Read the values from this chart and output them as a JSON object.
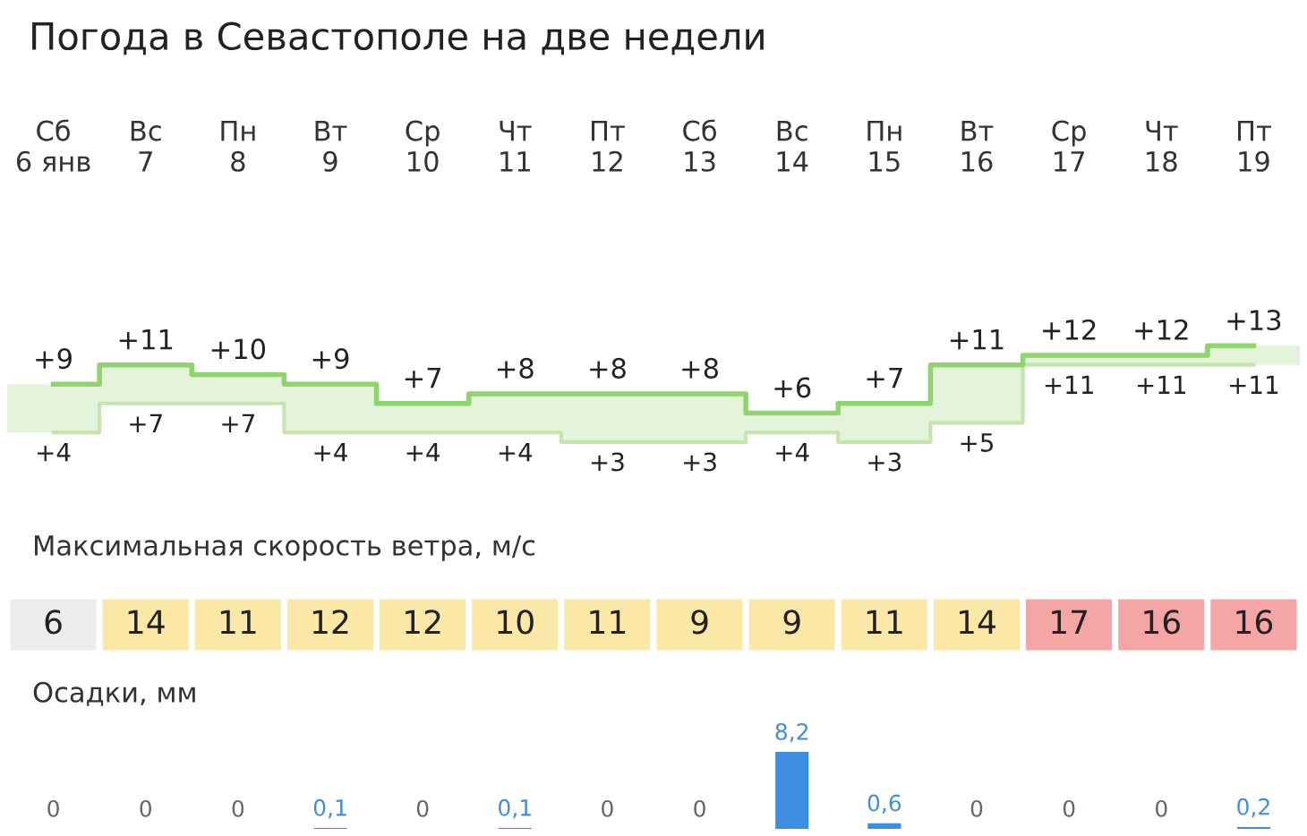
{
  "chart_data": [
    {
      "type": "step",
      "title": "Погода в Севастополе на две недели",
      "categories": [
        "Сб\n6 янв",
        "Вс\n7",
        "Пн\n8",
        "Вт\n9",
        "Ср\n10",
        "Чт\n11",
        "Пт\n12",
        "Сб\n13",
        "Вс\n14",
        "Пн\n15",
        "Вт\n16",
        "Ср\n17",
        "Чт\n18",
        "Пт\n19"
      ],
      "series": [
        {
          "color": "#8fd46c",
          "values": [
            9,
            11,
            10,
            9,
            7,
            8,
            8,
            8,
            6,
            7,
            11,
            12,
            12,
            13
          ],
          "value_labels": [
            "+9",
            "+11",
            "+10",
            "+9",
            "+7",
            "+8",
            "+8",
            "+8",
            "+6",
            "+7",
            "+11",
            "+12",
            "+12",
            "+13"
          ]
        },
        {
          "color": "#c4e6ae",
          "values": [
            4,
            7,
            7,
            4,
            4,
            4,
            3,
            3,
            4,
            3,
            5,
            11,
            11,
            11
          ],
          "value_labels": [
            "+4",
            "+7",
            "+7",
            "+4",
            "+4",
            "+4",
            "+3",
            "+3",
            "+4",
            "+3",
            "+5",
            "+11",
            "+11",
            "+11"
          ]
        }
      ]
    },
    {
      "type": "heatmap",
      "title": "Максимальная скорость ветра, м/с",
      "categories": [
        null,
        null,
        null,
        null,
        null,
        null,
        null,
        null,
        null,
        null,
        null,
        null,
        null,
        null
      ],
      "y_categories": [
        null
      ],
      "cells": [
        [
          6,
          14,
          11,
          12,
          12,
          10,
          11,
          9,
          9,
          11,
          14,
          17,
          16,
          16
        ]
      ],
      "cell_labels": [
        [
          "6",
          "14",
          "11",
          "12",
          "12",
          "10",
          "11",
          "9",
          "9",
          "11",
          "14",
          "17",
          "16",
          "16"
        ]
      ]
    },
    {
      "type": "bar",
      "title": "Осадки, мм",
      "color": "#3d8ee0",
      "categories": [
        null,
        null,
        null,
        null,
        null,
        null,
        null,
        null,
        null,
        null,
        null,
        null,
        null,
        null
      ],
      "values": [
        0,
        0,
        0,
        0.1,
        0,
        0.1,
        0,
        0,
        8.2,
        0.6,
        0,
        0,
        0,
        0.2
      ],
      "value_labels": [
        "0",
        "0",
        "0",
        "0,1",
        "0",
        "0,1",
        "0",
        "0",
        "8,2",
        "0,6",
        "0",
        "0",
        "0",
        "0,2"
      ]
    }
  ]
}
